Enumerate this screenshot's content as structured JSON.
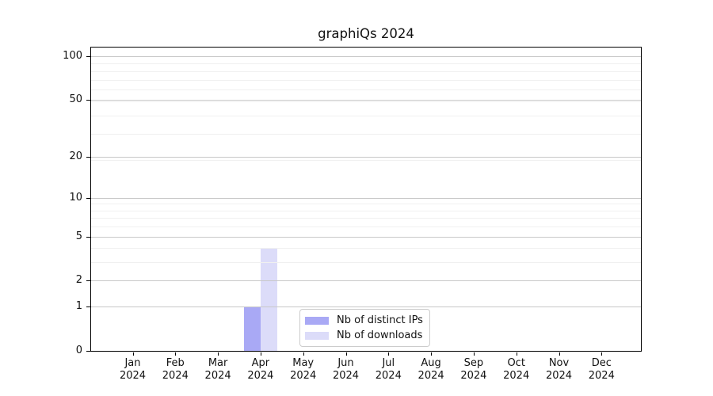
{
  "page": {
    "background": "#ffffff"
  },
  "chart_data": {
    "type": "bar",
    "title": "graphiQs 2024",
    "year": "2024",
    "categories": [
      "Jan",
      "Feb",
      "Mar",
      "Apr",
      "May",
      "Jun",
      "Jul",
      "Aug",
      "Sep",
      "Oct",
      "Nov",
      "Dec"
    ],
    "series": [
      {
        "name": "Nb of distinct IPs",
        "color": "#a9a9f5",
        "values": [
          0,
          0,
          0,
          1,
          0,
          0,
          0,
          0,
          0,
          0,
          0,
          0
        ]
      },
      {
        "name": "Nb of downloads",
        "color": "#dcdcf9",
        "values": [
          0,
          0,
          0,
          4,
          0,
          0,
          0,
          0,
          0,
          0,
          0,
          0
        ]
      }
    ],
    "y_scale": "log10(value+1)",
    "y_ticks": [
      0,
      1,
      2,
      5,
      10,
      20,
      50,
      100
    ],
    "y_minor_ticks": [
      1,
      2,
      3,
      4,
      5,
      6,
      7,
      8,
      9,
      19,
      29,
      39,
      49,
      59,
      69,
      79,
      89
    ],
    "ylim": [
      0,
      114.7
    ],
    "grid": true,
    "grid_above_bars": true,
    "legend_position": "lower center inside",
    "colors": {
      "major_grid": "#c8c8c8",
      "minor_grid": "#f0f0f0",
      "axis": "#000000",
      "text": "#111111"
    }
  }
}
